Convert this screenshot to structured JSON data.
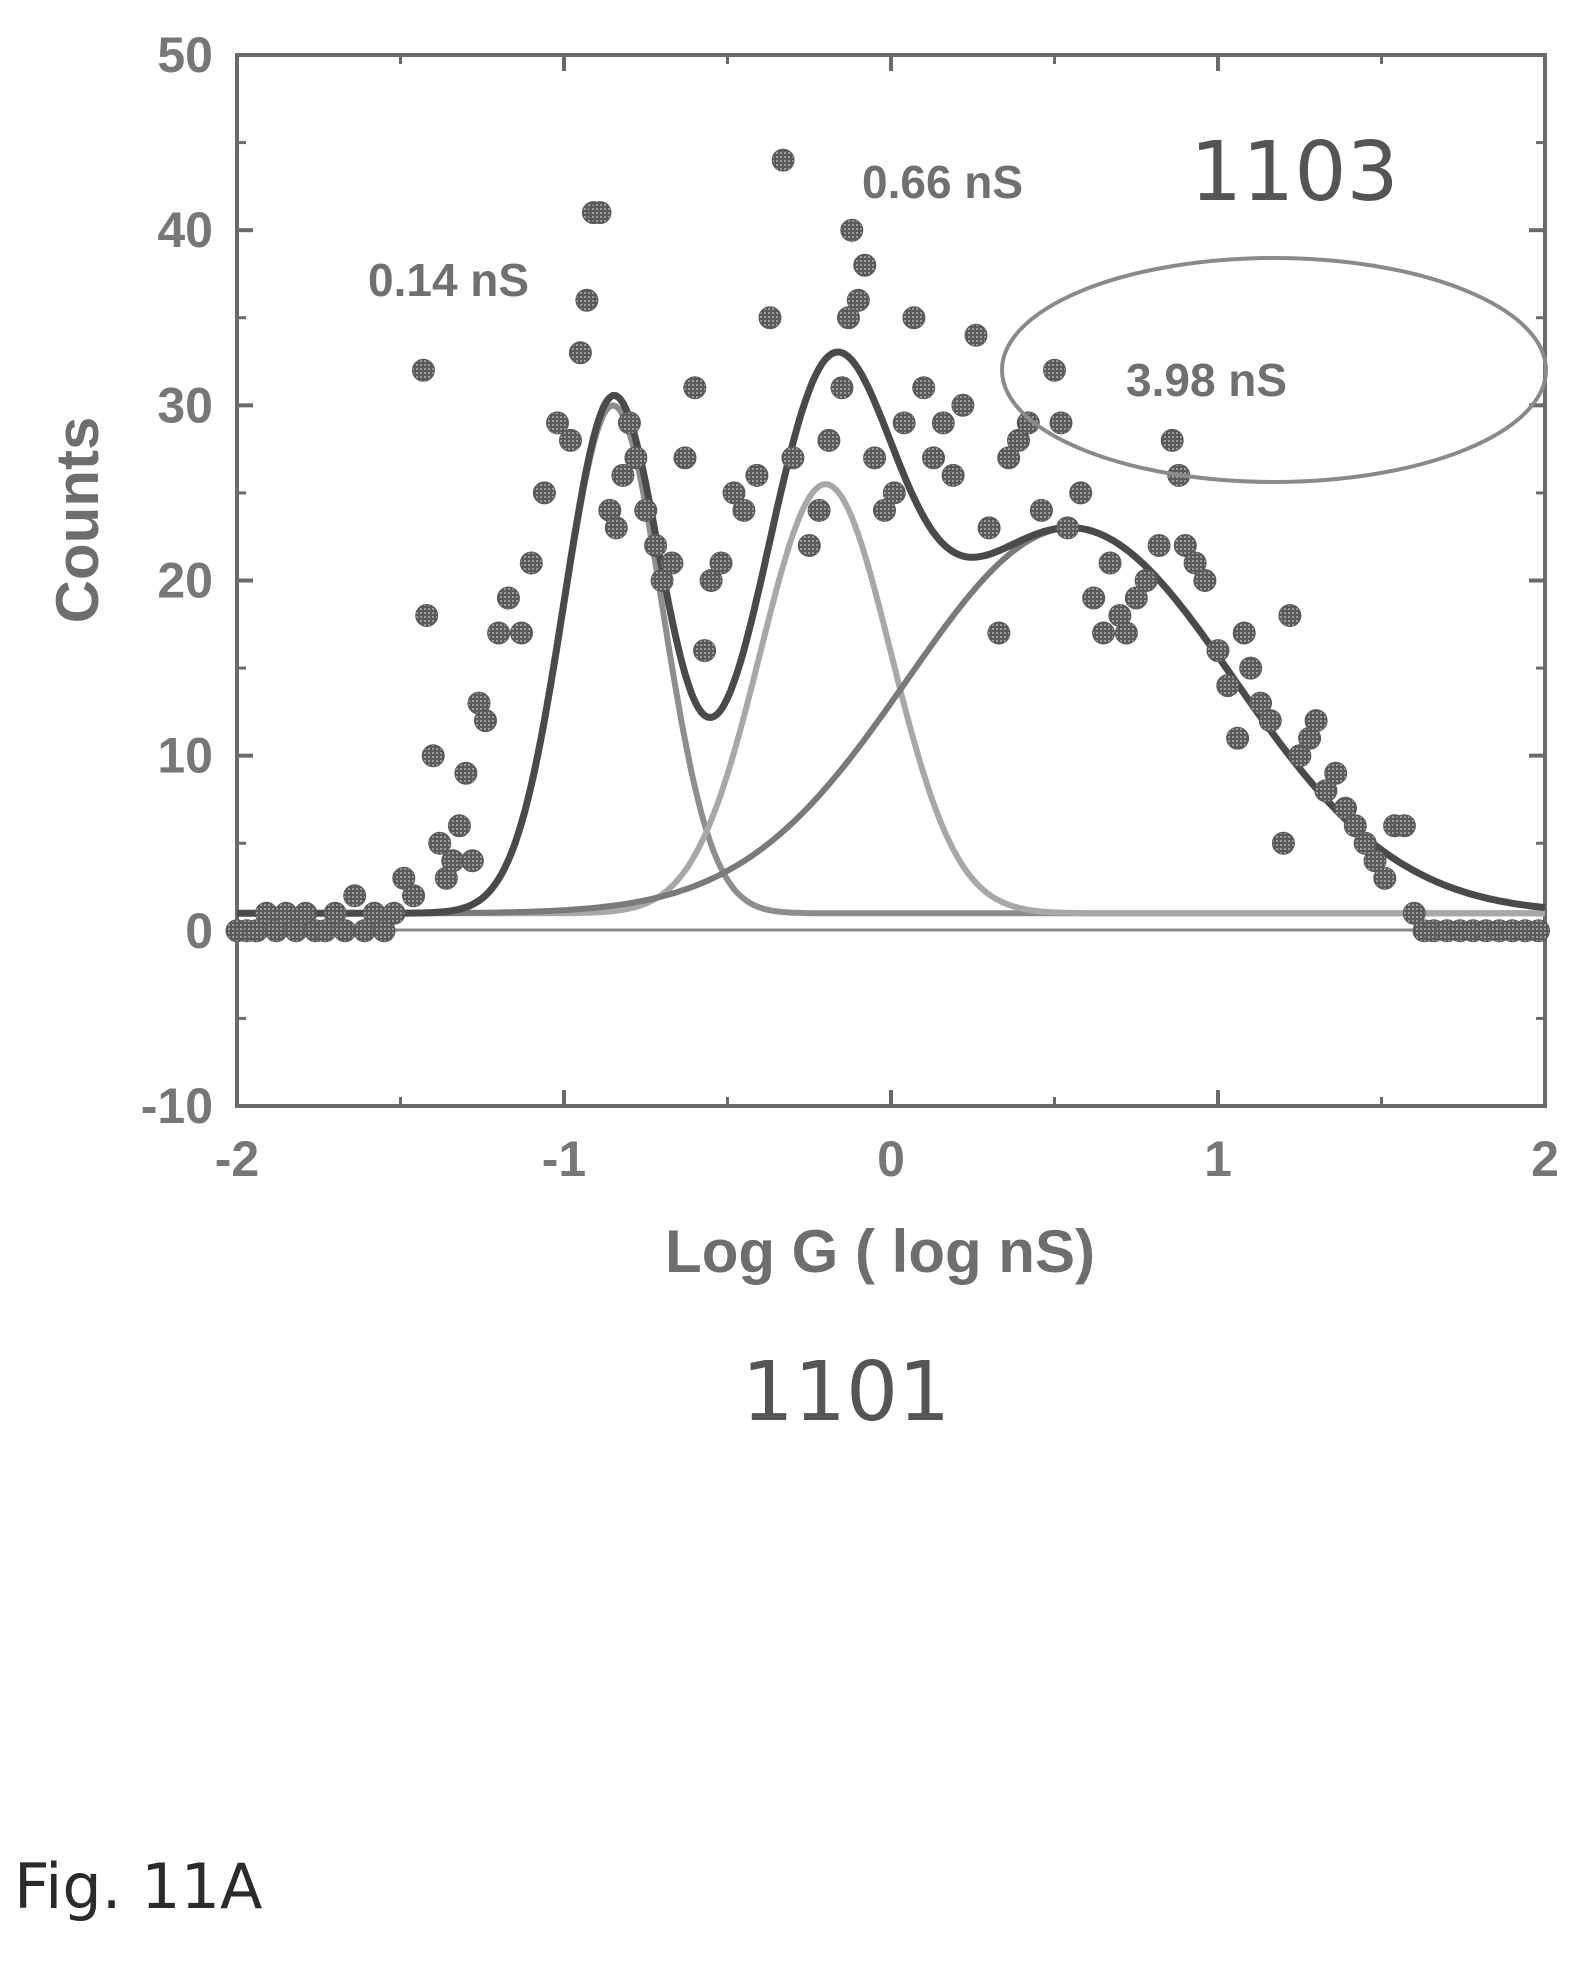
{
  "chart_data": {
    "type": "scatter",
    "xlabel": "Log G ( log nS)",
    "ylabel": "Counts",
    "xlim": [
      -2,
      2
    ],
    "ylim": [
      -10,
      50
    ],
    "xticks": [
      -2,
      -1,
      0,
      1,
      2
    ],
    "yticks": [
      -10,
      0,
      10,
      20,
      30,
      40,
      50
    ],
    "grid": false,
    "annotations": {
      "peak1": "0.14 nS",
      "peak2": "0.66 nS",
      "peak3": "3.98 nS",
      "ref_top": "1103",
      "ref_bottom": "1101"
    },
    "fit_components": [
      {
        "center": -0.85,
        "amplitude": 29,
        "sigma": 0.15
      },
      {
        "center": -0.2,
        "amplitude": 24.5,
        "sigma": 0.2
      },
      {
        "center": 0.55,
        "amplitude": 22,
        "sigma": 0.5
      }
    ],
    "fit_baseline": 1,
    "points": [
      [
        -2.0,
        0
      ],
      [
        -1.97,
        0
      ],
      [
        -1.94,
        0
      ],
      [
        -1.91,
        1
      ],
      [
        -1.88,
        0
      ],
      [
        -1.85,
        1
      ],
      [
        -1.82,
        0
      ],
      [
        -1.79,
        1
      ],
      [
        -1.76,
        0
      ],
      [
        -1.73,
        0
      ],
      [
        -1.7,
        1
      ],
      [
        -1.67,
        0
      ],
      [
        -1.64,
        2
      ],
      [
        -1.61,
        0
      ],
      [
        -1.58,
        1
      ],
      [
        -1.55,
        0
      ],
      [
        -1.52,
        1
      ],
      [
        -1.49,
        3
      ],
      [
        -1.46,
        2
      ],
      [
        -1.43,
        32
      ],
      [
        -1.42,
        18
      ],
      [
        -1.4,
        10
      ],
      [
        -1.38,
        5
      ],
      [
        -1.36,
        3
      ],
      [
        -1.34,
        4
      ],
      [
        -1.32,
        6
      ],
      [
        -1.3,
        9
      ],
      [
        -1.28,
        4
      ],
      [
        -1.26,
        13
      ],
      [
        -1.24,
        12
      ],
      [
        -1.2,
        17
      ],
      [
        -1.17,
        19
      ],
      [
        -1.13,
        17
      ],
      [
        -1.1,
        21
      ],
      [
        -1.06,
        25
      ],
      [
        -1.02,
        29
      ],
      [
        -0.98,
        28
      ],
      [
        -0.95,
        33
      ],
      [
        -0.93,
        36
      ],
      [
        -0.91,
        41
      ],
      [
        -0.89,
        41
      ],
      [
        -0.86,
        24
      ],
      [
        -0.84,
        23
      ],
      [
        -0.82,
        26
      ],
      [
        -0.8,
        29
      ],
      [
        -0.78,
        27
      ],
      [
        -0.75,
        24
      ],
      [
        -0.72,
        22
      ],
      [
        -0.7,
        20
      ],
      [
        -0.67,
        21
      ],
      [
        -0.63,
        27
      ],
      [
        -0.6,
        31
      ],
      [
        -0.57,
        16
      ],
      [
        -0.55,
        20
      ],
      [
        -0.52,
        21
      ],
      [
        -0.48,
        25
      ],
      [
        -0.45,
        24
      ],
      [
        -0.41,
        26
      ],
      [
        -0.37,
        35
      ],
      [
        -0.33,
        44
      ],
      [
        -0.3,
        27
      ],
      [
        -0.25,
        22
      ],
      [
        -0.22,
        24
      ],
      [
        -0.19,
        28
      ],
      [
        -0.15,
        31
      ],
      [
        -0.13,
        35
      ],
      [
        -0.12,
        40
      ],
      [
        -0.1,
        36
      ],
      [
        -0.08,
        38
      ],
      [
        -0.05,
        27
      ],
      [
        -0.02,
        24
      ],
      [
        0.01,
        25
      ],
      [
        0.04,
        29
      ],
      [
        0.07,
        35
      ],
      [
        0.1,
        31
      ],
      [
        0.13,
        27
      ],
      [
        0.16,
        29
      ],
      [
        0.19,
        26
      ],
      [
        0.22,
        30
      ],
      [
        0.26,
        34
      ],
      [
        0.3,
        23
      ],
      [
        0.33,
        17
      ],
      [
        0.36,
        27
      ],
      [
        0.39,
        28
      ],
      [
        0.42,
        29
      ],
      [
        0.46,
        24
      ],
      [
        0.5,
        32
      ],
      [
        0.52,
        29
      ],
      [
        0.54,
        23
      ],
      [
        0.58,
        25
      ],
      [
        0.62,
        19
      ],
      [
        0.65,
        17
      ],
      [
        0.67,
        21
      ],
      [
        0.7,
        18
      ],
      [
        0.72,
        17
      ],
      [
        0.75,
        19
      ],
      [
        0.78,
        20
      ],
      [
        0.82,
        22
      ],
      [
        0.86,
        28
      ],
      [
        0.88,
        26
      ],
      [
        0.9,
        22
      ],
      [
        0.93,
        21
      ],
      [
        0.96,
        20
      ],
      [
        1.0,
        16
      ],
      [
        1.03,
        14
      ],
      [
        1.06,
        11
      ],
      [
        1.08,
        17
      ],
      [
        1.1,
        15
      ],
      [
        1.13,
        13
      ],
      [
        1.16,
        12
      ],
      [
        1.2,
        5
      ],
      [
        1.22,
        18
      ],
      [
        1.25,
        10
      ],
      [
        1.28,
        11
      ],
      [
        1.3,
        12
      ],
      [
        1.33,
        8
      ],
      [
        1.36,
        9
      ],
      [
        1.39,
        7
      ],
      [
        1.42,
        6
      ],
      [
        1.45,
        5
      ],
      [
        1.48,
        4
      ],
      [
        1.51,
        3
      ],
      [
        1.54,
        6
      ],
      [
        1.57,
        6
      ],
      [
        1.6,
        1
      ],
      [
        1.63,
        0
      ],
      [
        1.66,
        0
      ],
      [
        1.7,
        0
      ],
      [
        1.74,
        0
      ],
      [
        1.78,
        0
      ],
      [
        1.82,
        0
      ],
      [
        1.86,
        0
      ],
      [
        1.9,
        0
      ],
      [
        1.94,
        0
      ],
      [
        1.98,
        0
      ]
    ]
  },
  "figure_label": "Fig. 11A"
}
